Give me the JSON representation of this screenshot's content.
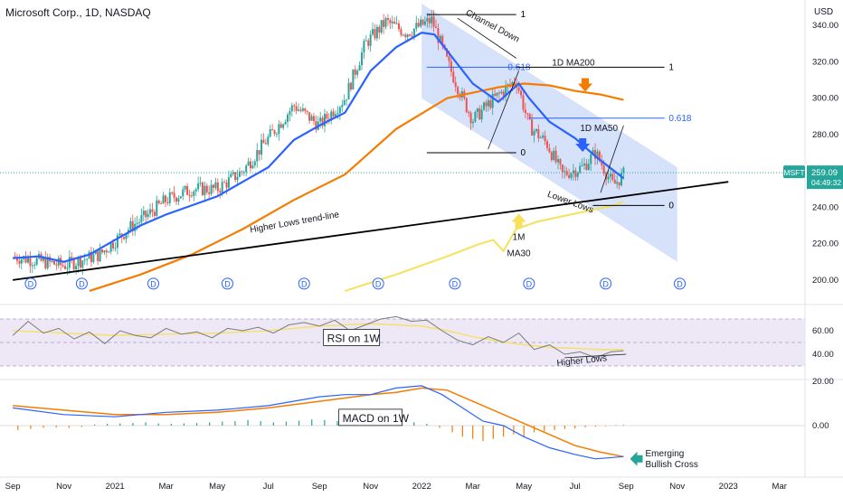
{
  "header": {
    "title": "Microsoft Corp., 1D, NASDAQ"
  },
  "chart_data": {
    "type": "candlestick",
    "currency_label": "USD",
    "price_axis": {
      "ylim": [
        188,
        352
      ],
      "ticks": [
        "340.00",
        "320.00",
        "300.00",
        "280.00",
        "260.00",
        "240.00",
        "220.00",
        "200.00"
      ],
      "tick_values": [
        340,
        320,
        300,
        280,
        260,
        240,
        220,
        200
      ]
    },
    "time_axis": {
      "labels": [
        "Sep",
        "Nov",
        "2021",
        "Mar",
        "May",
        "Jul",
        "Sep",
        "Nov",
        "2022",
        "Mar",
        "May",
        "Jul",
        "Sep",
        "Nov",
        "2023",
        "Mar"
      ],
      "tick_months": [
        0,
        2,
        4,
        6,
        8,
        10,
        12,
        14,
        16,
        18,
        20,
        22,
        24,
        26,
        28,
        30
      ],
      "start": "2020-09"
    },
    "symbol_badge": "MSFT",
    "last_price": "259.09",
    "countdown": "04:49:32",
    "price_path": [
      [
        0,
        213
      ],
      [
        2,
        208
      ],
      [
        3.4,
        214
      ],
      [
        4.6,
        229
      ],
      [
        5.3,
        236
      ],
      [
        6,
        244
      ],
      [
        7,
        250
      ],
      [
        8,
        250
      ],
      [
        9,
        260
      ],
      [
        10,
        278
      ],
      [
        11,
        296
      ],
      [
        12,
        285
      ],
      [
        13,
        300
      ],
      [
        13.8,
        330
      ],
      [
        14.6,
        342
      ],
      [
        15.4,
        336
      ],
      [
        16.4,
        343
      ],
      [
        17,
        320
      ],
      [
        17.6,
        300
      ],
      [
        18,
        288
      ],
      [
        18.7,
        298
      ],
      [
        19.7,
        310
      ],
      [
        20.2,
        285
      ],
      [
        20.9,
        275
      ],
      [
        21.5,
        258
      ],
      [
        22.3,
        262
      ],
      [
        22.8,
        270
      ],
      [
        23.5,
        252
      ],
      [
        23.9,
        258
      ]
    ],
    "ma50": [
      [
        0,
        212
      ],
      [
        1,
        213
      ],
      [
        2,
        210
      ],
      [
        3,
        214
      ],
      [
        4,
        222
      ],
      [
        5,
        230
      ],
      [
        6,
        236
      ],
      [
        7,
        241
      ],
      [
        8,
        246
      ],
      [
        9,
        254
      ],
      [
        10,
        262
      ],
      [
        11,
        277
      ],
      [
        12,
        285
      ],
      [
        13,
        292
      ],
      [
        14,
        315
      ],
      [
        15,
        328
      ],
      [
        16,
        336
      ],
      [
        16.5,
        335
      ],
      [
        17,
        326
      ],
      [
        18,
        308
      ],
      [
        19,
        298
      ],
      [
        19.8,
        308
      ],
      [
        20.2,
        300
      ],
      [
        21,
        287
      ],
      [
        22,
        278
      ],
      [
        22.8,
        268
      ],
      [
        23.9,
        256
      ]
    ],
    "ma200": [
      [
        3,
        194
      ],
      [
        5,
        203
      ],
      [
        7,
        214
      ],
      [
        9,
        228
      ],
      [
        11,
        244
      ],
      [
        13,
        258
      ],
      [
        15,
        283
      ],
      [
        17,
        300
      ],
      [
        19,
        306
      ],
      [
        20,
        308
      ],
      [
        21,
        307
      ],
      [
        22,
        304
      ],
      [
        23,
        302
      ],
      [
        23.9,
        299
      ]
    ],
    "ma30_1m": [
      [
        13,
        194
      ],
      [
        15,
        203
      ],
      [
        17,
        213
      ],
      [
        18.3,
        220
      ],
      [
        18.8,
        222
      ],
      [
        19.2,
        216
      ],
      [
        19.7,
        228
      ],
      [
        20.5,
        232
      ],
      [
        21.5,
        235
      ],
      [
        22.5,
        238
      ],
      [
        23.5,
        241
      ],
      [
        23.9,
        243
      ]
    ],
    "trendline": {
      "label": "Higher Lows trend-line",
      "from": [
        0,
        200
      ],
      "to": [
        28,
        254
      ]
    },
    "channel": {
      "label": "Channel Down",
      "upper_from": [
        16,
        352
      ],
      "upper_to": [
        26,
        262
      ],
      "lower_from": [
        16,
        300
      ],
      "lower_to": [
        26,
        210
      ]
    },
    "fib_levels": [
      {
        "label": "1",
        "price": 346
      },
      {
        "label": "0.618",
        "price": 317
      },
      {
        "label": "0",
        "price": 270
      },
      {
        "label": "1",
        "price": 317
      },
      {
        "label": "0.618",
        "price": 289
      },
      {
        "label": "0",
        "price": 241
      }
    ],
    "annotations": {
      "ma200": "1D MA200",
      "ma50": "1D MA50",
      "ma30_line1": "1M",
      "ma30_line2": "MA30",
      "lower_lows": "Lower Lows",
      "higher_lows": "Higher Lows",
      "emerging_line1": "Emerging",
      "emerging_line2": "Bullish Cross"
    },
    "dividend_marker": "D",
    "dividend_months": [
      0.7,
      2.7,
      5.5,
      8.4,
      11.4,
      14.3,
      17.3,
      20.2,
      23.2,
      26.1
    ],
    "rsi": {
      "label": "RSI on 1W",
      "ylim": [
        20,
        80
      ],
      "ticks": [
        "60.00",
        "40.00"
      ],
      "tick_values": [
        60,
        40
      ],
      "band": [
        30,
        70
      ],
      "values": [
        [
          0,
          56
        ],
        [
          0.6,
          68
        ],
        [
          1.2,
          58
        ],
        [
          1.8,
          62
        ],
        [
          2.4,
          53
        ],
        [
          3,
          59
        ],
        [
          3.6,
          49
        ],
        [
          4.2,
          60
        ],
        [
          4.8,
          56
        ],
        [
          5.4,
          54
        ],
        [
          6,
          62
        ],
        [
          6.6,
          57
        ],
        [
          7.2,
          59
        ],
        [
          7.8,
          54
        ],
        [
          8.4,
          62
        ],
        [
          9,
          60
        ],
        [
          9.6,
          63
        ],
        [
          10.2,
          58
        ],
        [
          10.8,
          65
        ],
        [
          11.4,
          67
        ],
        [
          12,
          64
        ],
        [
          12.6,
          69
        ],
        [
          13.2,
          60
        ],
        [
          13.8,
          65
        ],
        [
          14.4,
          70
        ],
        [
          15,
          72
        ],
        [
          15.6,
          68
        ],
        [
          16.2,
          69
        ],
        [
          16.8,
          60
        ],
        [
          17.4,
          52
        ],
        [
          18,
          48
        ],
        [
          18.6,
          55
        ],
        [
          19.2,
          50
        ],
        [
          19.8,
          58
        ],
        [
          20.4,
          44
        ],
        [
          21,
          48
        ],
        [
          21.6,
          40
        ],
        [
          22.2,
          42
        ],
        [
          22.8,
          37
        ],
        [
          23.4,
          42
        ],
        [
          23.9,
          43
        ]
      ],
      "signal": [
        [
          0,
          60
        ],
        [
          2,
          58
        ],
        [
          4,
          56
        ],
        [
          6,
          57
        ],
        [
          8,
          58
        ],
        [
          10,
          60
        ],
        [
          12,
          64
        ],
        [
          14,
          66
        ],
        [
          16,
          64
        ],
        [
          17,
          60
        ],
        [
          18,
          55
        ],
        [
          19,
          51
        ],
        [
          20,
          48
        ],
        [
          21,
          46
        ],
        [
          22,
          45
        ],
        [
          23,
          44
        ],
        [
          23.9,
          44
        ]
      ]
    },
    "macd": {
      "label": "MACD on 1W",
      "ylim": [
        -20,
        20
      ],
      "ticks": [
        "20.00",
        "0.00"
      ],
      "tick_values": [
        20,
        0
      ],
      "values": [
        [
          0,
          8
        ],
        [
          2,
          5
        ],
        [
          4,
          4
        ],
        [
          6,
          6
        ],
        [
          8,
          7
        ],
        [
          10,
          9
        ],
        [
          12,
          13
        ],
        [
          13,
          14
        ],
        [
          14,
          14
        ],
        [
          15,
          17
        ],
        [
          16,
          18
        ],
        [
          16.8,
          14
        ],
        [
          17.6,
          8
        ],
        [
          18.4,
          2
        ],
        [
          19.2,
          0
        ],
        [
          20,
          -5
        ],
        [
          21,
          -10
        ],
        [
          22,
          -13
        ],
        [
          22.8,
          -15
        ],
        [
          23.9,
          -14
        ]
      ],
      "signal": [
        [
          0,
          9
        ],
        [
          2,
          7
        ],
        [
          4,
          5
        ],
        [
          6,
          5
        ],
        [
          8,
          6
        ],
        [
          10,
          8
        ],
        [
          12,
          11
        ],
        [
          14,
          14
        ],
        [
          15,
          15
        ],
        [
          16,
          17
        ],
        [
          17,
          16
        ],
        [
          18,
          11
        ],
        [
          19,
          6
        ],
        [
          20,
          1
        ],
        [
          21,
          -4
        ],
        [
          22,
          -9
        ],
        [
          23,
          -12
        ],
        [
          23.9,
          -14
        ]
      ],
      "histogram": [
        [
          0.2,
          -2
        ],
        [
          0.7,
          -1.5
        ],
        [
          1.2,
          -1
        ],
        [
          1.7,
          -0.8
        ],
        [
          2.2,
          -1
        ],
        [
          2.7,
          -0.6
        ],
        [
          3.2,
          0.5
        ],
        [
          3.7,
          0.8
        ],
        [
          4.2,
          1
        ],
        [
          4.7,
          1.2
        ],
        [
          5.2,
          1.5
        ],
        [
          5.7,
          1
        ],
        [
          6.2,
          0.8
        ],
        [
          6.7,
          1
        ],
        [
          7.2,
          1.2
        ],
        [
          7.7,
          1.5
        ],
        [
          8.2,
          1.8
        ],
        [
          8.7,
          2
        ],
        [
          9.2,
          2.5
        ],
        [
          9.7,
          2
        ],
        [
          10.2,
          1.5
        ],
        [
          10.7,
          1.8
        ],
        [
          11.2,
          2.2
        ],
        [
          11.7,
          2.8
        ],
        [
          12.2,
          2.5
        ],
        [
          12.7,
          2
        ],
        [
          13.2,
          1.5
        ],
        [
          13.7,
          1.2
        ],
        [
          14.2,
          1.6
        ],
        [
          14.7,
          2
        ],
        [
          15.2,
          2.2
        ],
        [
          15.7,
          1.5
        ],
        [
          16.2,
          0.8
        ],
        [
          16.7,
          -1
        ],
        [
          17.2,
          -3
        ],
        [
          17.6,
          -5
        ],
        [
          18,
          -6
        ],
        [
          18.4,
          -7
        ],
        [
          18.8,
          -6
        ],
        [
          19.2,
          -5
        ],
        [
          19.6,
          -4
        ],
        [
          20,
          -5
        ],
        [
          20.4,
          -3
        ],
        [
          20.8,
          -2.5
        ],
        [
          21.2,
          -2
        ],
        [
          21.6,
          -1.5
        ],
        [
          22,
          -1.2
        ],
        [
          22.4,
          -0.8
        ],
        [
          22.8,
          -0.5
        ],
        [
          23.2,
          -0.3
        ],
        [
          23.6,
          0.2
        ],
        [
          23.9,
          0.3
        ]
      ]
    },
    "colors": {
      "price_up": "#26a69a",
      "price_down": "#ef5350",
      "ma50": "#2962ff",
      "ma200": "#f57c00",
      "ma30": "#f7e05a",
      "channel": "#b5c9f5",
      "trend": "#000000",
      "fib": "#000000",
      "fib_blue": "#2962ff",
      "rsi": "#7b7b7b",
      "rsi_signal": "#f7e05a",
      "rsi_band": "#ede7f6",
      "macd": "#2962ff",
      "macd_signal": "#f57c00",
      "badge": "#26a69a",
      "arrow_orange": "#f57c00",
      "arrow_blue": "#2962ff",
      "arrow_yellow": "#f7e05a",
      "arrow_teal": "#26a69a"
    }
  }
}
